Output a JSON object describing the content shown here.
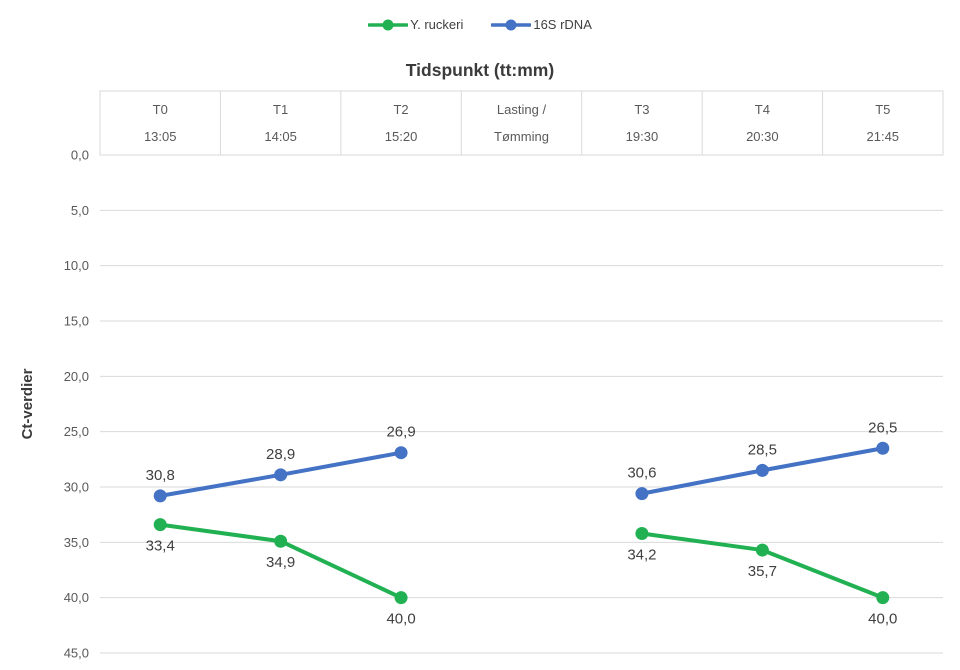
{
  "chart_data": {
    "type": "line",
    "title": "Tidspunkt (tt:mm)",
    "ylabel": "Ct-verdier",
    "xlabel": "",
    "grid": true,
    "legend_position": "top",
    "y_axis": {
      "min": 0,
      "max": 45,
      "step": 5,
      "inverted": true,
      "ticks": [
        {
          "value": 0,
          "label": "0,0"
        },
        {
          "value": 5,
          "label": "5,0"
        },
        {
          "value": 10,
          "label": "10,0"
        },
        {
          "value": 15,
          "label": "15,0"
        },
        {
          "value": 20,
          "label": "20,0"
        },
        {
          "value": 25,
          "label": "25,0"
        },
        {
          "value": 30,
          "label": "30,0"
        },
        {
          "value": 35,
          "label": "35,0"
        },
        {
          "value": 40,
          "label": "40,0"
        },
        {
          "value": 45,
          "label": "45,0"
        }
      ]
    },
    "categories": [
      {
        "label": "T0",
        "sublabel": "13:05"
      },
      {
        "label": "T1",
        "sublabel": "14:05"
      },
      {
        "label": "T2",
        "sublabel": "15:20"
      },
      {
        "label": "Lasting /",
        "sublabel": "Tømming"
      },
      {
        "label": "T3",
        "sublabel": "19:30"
      },
      {
        "label": "T4",
        "sublabel": "20:30"
      },
      {
        "label": "T5",
        "sublabel": "21:45"
      }
    ],
    "series": [
      {
        "name": "Y. ruckeri",
        "color": "#21B152",
        "label_position": "below",
        "values": [
          33.4,
          34.9,
          40.0,
          null,
          34.2,
          35.7,
          40.0
        ],
        "value_labels": [
          "33,4",
          "34,9",
          "40,0",
          null,
          "34,2",
          "35,7",
          "40,0"
        ]
      },
      {
        "name": "16S rDNA",
        "color": "#4472C4",
        "label_position": "above",
        "values": [
          30.8,
          28.9,
          26.9,
          null,
          30.6,
          28.5,
          26.5
        ],
        "value_labels": [
          "30,8",
          "28,9",
          "26,9",
          null,
          "30,6",
          "28,5",
          "26,5"
        ]
      }
    ]
  },
  "colors": {
    "grid": "#D9D9D9",
    "axis_text": "#595959",
    "data_label": "#404040",
    "title_text": "#3B3B3B",
    "background": "#FFFFFF"
  }
}
